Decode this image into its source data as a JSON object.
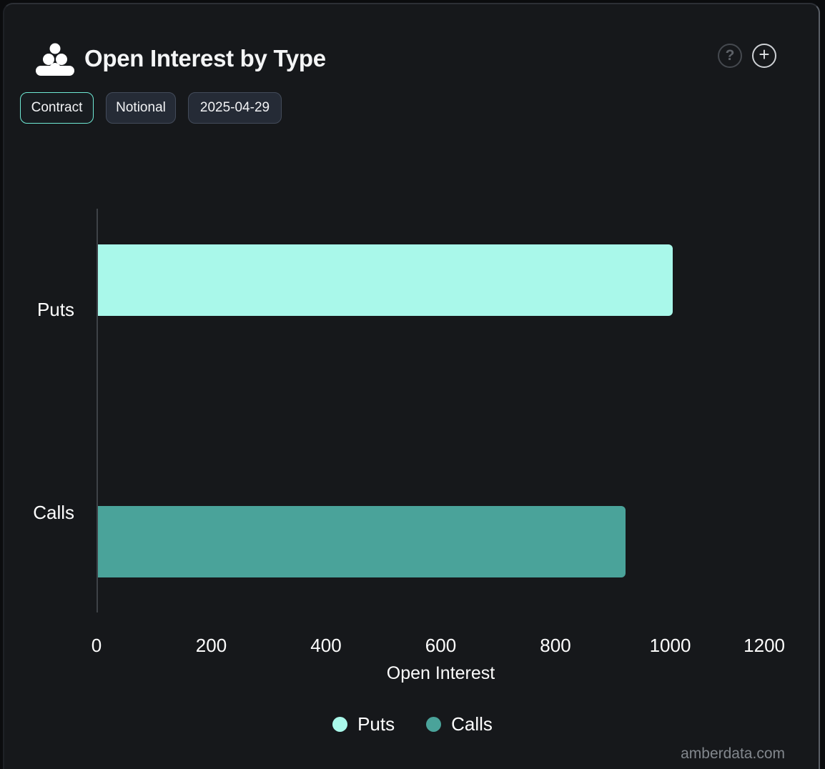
{
  "header": {
    "title": "Open Interest by Type",
    "logo_icon": "amberdata-dots-pyramid",
    "help_icon": "?",
    "add_icon": "+"
  },
  "toolbar": {
    "buttons": [
      {
        "label": "Contract",
        "active": true
      },
      {
        "label": "Notional",
        "active": false
      },
      {
        "label": "2025-04-29",
        "active": false
      }
    ]
  },
  "chart_data": {
    "type": "bar",
    "orientation": "horizontal",
    "title": "Open Interest by Type",
    "categories": [
      "Puts",
      "Calls"
    ],
    "series": [
      {
        "name": "Puts",
        "color": "#a9f8ea",
        "values": [
          1002,
          null
        ]
      },
      {
        "name": "Calls",
        "color": "#4aa39a",
        "values": [
          null,
          920
        ]
      }
    ],
    "xlabel": "Open Interest",
    "ylabel": "",
    "xlim": [
      0,
      1200
    ],
    "xticks": [
      0,
      200,
      400,
      600,
      800,
      1000,
      1200
    ],
    "grid": false,
    "legend": [
      "Puts",
      "Calls"
    ],
    "legend_position": "bottom"
  },
  "colors": {
    "background": "#16181b",
    "accent_active_border": "#6fe9d5",
    "puts_bar": "#a9f8ea",
    "calls_bar": "#4aa39a",
    "axis_line": "#3e4247",
    "text": "#ffffff"
  },
  "watermark": "amberdata.com"
}
